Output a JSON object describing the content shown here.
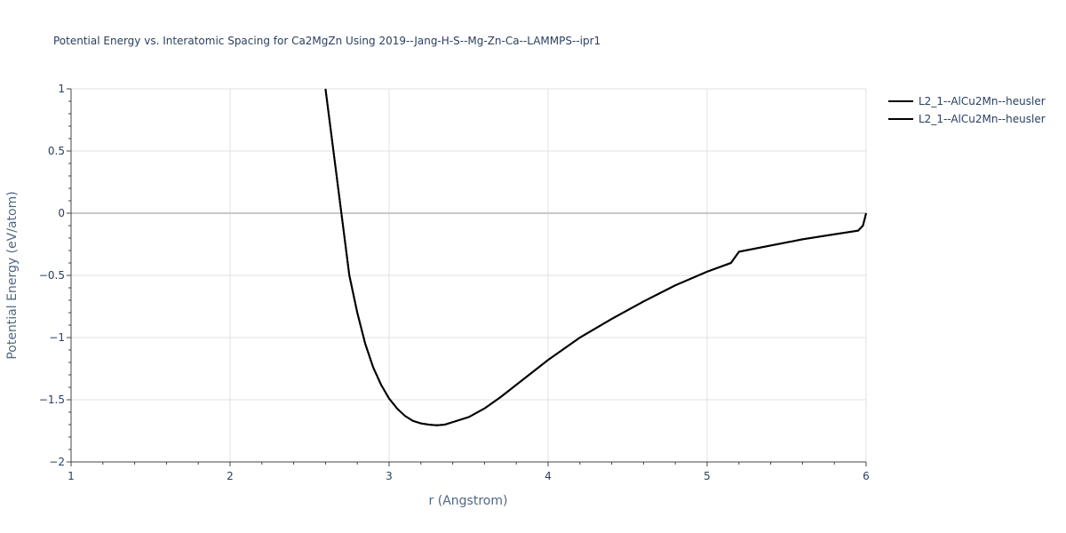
{
  "chart_data": {
    "type": "line",
    "title": "Potential Energy vs. Interatomic Spacing for Ca2MgZn Using 2019--Jang-H-S--Mg-Zn-Ca--LAMMPS--ipr1",
    "xlabel": "r (Angstrom)",
    "ylabel": "Potential Energy (eV/atom)",
    "xlim": [
      1,
      6
    ],
    "ylim": [
      -2,
      1
    ],
    "x_ticks": [
      1,
      2,
      3,
      4,
      5,
      6
    ],
    "x_tick_labels": [
      "1",
      "2",
      "3",
      "4",
      "5",
      "6"
    ],
    "y_ticks": [
      -2,
      -1.5,
      -1,
      -0.5,
      0,
      0.5,
      1
    ],
    "y_tick_labels": [
      "−2",
      "−1.5",
      "−1",
      "−0.5",
      "0",
      "0.5",
      "1"
    ],
    "grid": true,
    "legend_position": "top-right",
    "series": [
      {
        "name": "L2_1--AlCu2Mn--heusler",
        "color": "#000000",
        "x": [
          2.6,
          2.65,
          2.7,
          2.75,
          2.8,
          2.85,
          2.9,
          2.95,
          3.0,
          3.05,
          3.1,
          3.15,
          3.2,
          3.25,
          3.3,
          3.35,
          3.4,
          3.5,
          3.6,
          3.7,
          3.8,
          3.9,
          4.0,
          4.2,
          4.4,
          4.6,
          4.8,
          5.0,
          5.15,
          5.2,
          5.4,
          5.6,
          5.8,
          5.95,
          5.98,
          6.0
        ],
        "y": [
          1.0,
          0.5,
          0.0,
          -0.5,
          -0.8,
          -1.05,
          -1.24,
          -1.38,
          -1.49,
          -1.57,
          -1.63,
          -1.67,
          -1.69,
          -1.7,
          -1.705,
          -1.7,
          -1.68,
          -1.64,
          -1.57,
          -1.48,
          -1.38,
          -1.28,
          -1.18,
          -1.0,
          -0.85,
          -0.71,
          -0.58,
          -0.47,
          -0.4,
          -0.31,
          -0.26,
          -0.21,
          -0.17,
          -0.14,
          -0.1,
          0.0
        ]
      },
      {
        "name": "L2_1--AlCu2Mn--heusler",
        "color": "#000000",
        "x": [
          2.6,
          2.65,
          2.7,
          2.75,
          2.8,
          2.85,
          2.9,
          2.95,
          3.0,
          3.05,
          3.1,
          3.15,
          3.2,
          3.25,
          3.3,
          3.35,
          3.4,
          3.5,
          3.6,
          3.7,
          3.8,
          3.9,
          4.0,
          4.2,
          4.4,
          4.6,
          4.8,
          5.0,
          5.15,
          5.2,
          5.4,
          5.6,
          5.8,
          5.95,
          5.98,
          6.0
        ],
        "y": [
          1.0,
          0.5,
          0.0,
          -0.5,
          -0.8,
          -1.05,
          -1.24,
          -1.38,
          -1.49,
          -1.57,
          -1.63,
          -1.67,
          -1.69,
          -1.7,
          -1.705,
          -1.7,
          -1.68,
          -1.64,
          -1.57,
          -1.48,
          -1.38,
          -1.28,
          -1.18,
          -1.0,
          -0.85,
          -0.71,
          -0.58,
          -0.47,
          -0.4,
          -0.31,
          -0.26,
          -0.21,
          -0.17,
          -0.14,
          -0.1,
          0.0
        ]
      }
    ]
  }
}
